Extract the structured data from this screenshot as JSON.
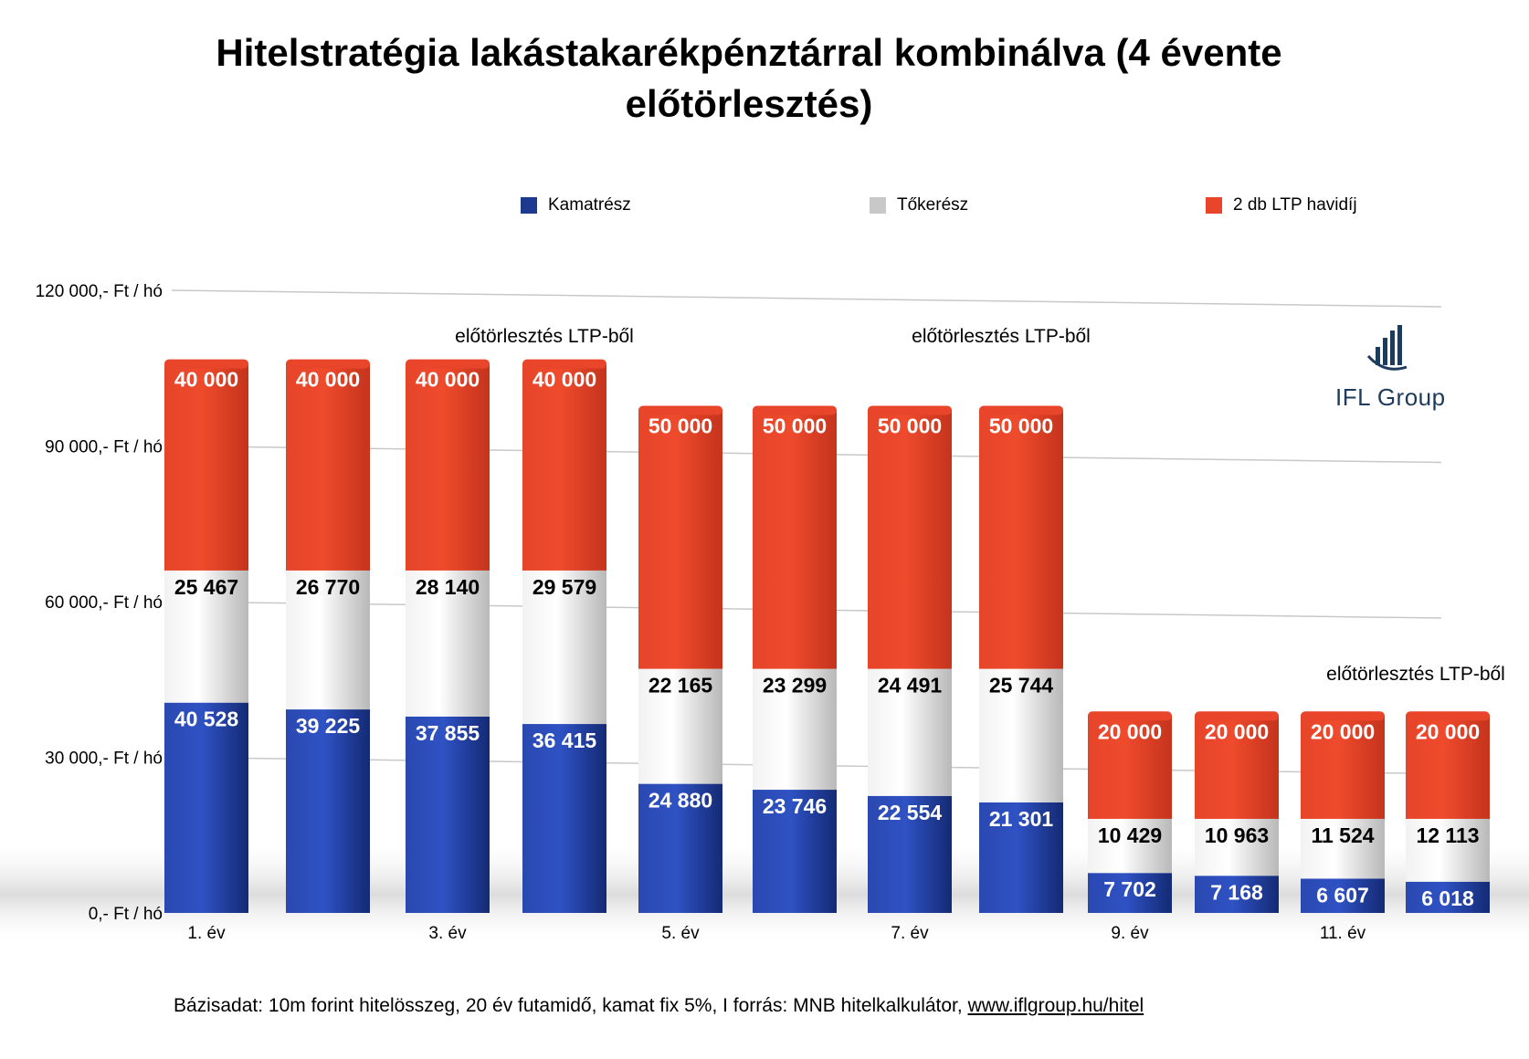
{
  "chart_data": {
    "type": "bar",
    "stacked": true,
    "title": "Hitelstratégia lakástakarékpénztárral kombinálva (4 évente előtörlesztés)",
    "categories": [
      "1. év",
      "",
      "3. év",
      "",
      "5. év",
      "",
      "7. év",
      "",
      "9. év",
      "",
      "11. év",
      ""
    ],
    "series": [
      {
        "name": "Kamatrész",
        "color": "#1e3a8f",
        "values": [
          40528,
          39225,
          37855,
          36415,
          24880,
          23746,
          22554,
          21301,
          7702,
          7168,
          6607,
          6018
        ]
      },
      {
        "name": "Tőkerész",
        "color": "#c8c8c8",
        "values": [
          25467,
          26770,
          28140,
          29579,
          22165,
          23299,
          24491,
          25744,
          10429,
          10963,
          11524,
          12113
        ]
      },
      {
        "name": "2 db LTP havidíj",
        "color": "#e8452a",
        "values": [
          40000,
          40000,
          40000,
          40000,
          50000,
          50000,
          50000,
          50000,
          20000,
          20000,
          20000,
          20000
        ]
      }
    ],
    "data_labels": {
      "Kamatrész": [
        "40 528",
        "39 225",
        "37 855",
        "36 415",
        "24 880",
        "23 746",
        "22 554",
        "21 301",
        "7 702",
        "7 168",
        "6 607",
        "6 018"
      ],
      "Tőkerész": [
        "25 467",
        "26 770",
        "28 140",
        "29 579",
        "22 165",
        "23 299",
        "24 491",
        "25 744",
        "10 429",
        "10 963",
        "11 524",
        "12 113"
      ],
      "2 db LTP havidíj": [
        "40 000",
        "40 000",
        "40 000",
        "40 000",
        "50 000",
        "50 000",
        "50 000",
        "50 000",
        "20 000",
        "20 000",
        "20 000",
        "20 000"
      ]
    },
    "y_ticks": [
      {
        "value": 0,
        "label": "0,- Ft / hó"
      },
      {
        "value": 30000,
        "label": "30 000,- Ft / hó"
      },
      {
        "value": 60000,
        "label": "60 000,- Ft / hó"
      },
      {
        "value": 90000,
        "label": "90 000,- Ft / hó"
      },
      {
        "value": 120000,
        "label": "120 000,- Ft / hó"
      }
    ],
    "ylim": [
      0,
      120000
    ],
    "grid": true,
    "legend_position": "top",
    "annotations": [
      "előtörlesztés LTP-ből",
      "előtörlesztés LTP-ből",
      "előtörlesztés LTP-ből"
    ]
  },
  "footer": {
    "text": "Bázisadat: 10m forint hitelösszeg, 20 év futamidő, kamat fix 5%,  I forrás: MNB hitelkalkulátor, ",
    "link": "www.iflgroup.hu/hitel"
  },
  "logo": {
    "text": "IFL Group"
  }
}
